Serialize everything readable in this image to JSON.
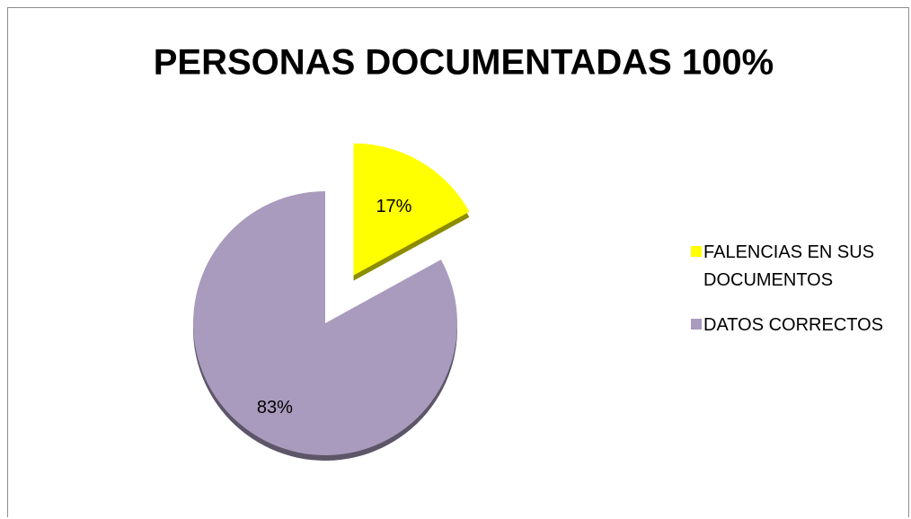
{
  "chart_data": {
    "type": "pie",
    "title": "PERSONAS DOCUMENTADAS 100%",
    "categories": [
      "FALENCIAS EN SUS DOCUMENTOS",
      "DATOS CORRECTOS"
    ],
    "values": [
      17,
      83
    ],
    "value_labels": [
      "17%",
      "83%"
    ],
    "colors": [
      "#ffff00",
      "#a99bbd"
    ],
    "legend": "right"
  }
}
